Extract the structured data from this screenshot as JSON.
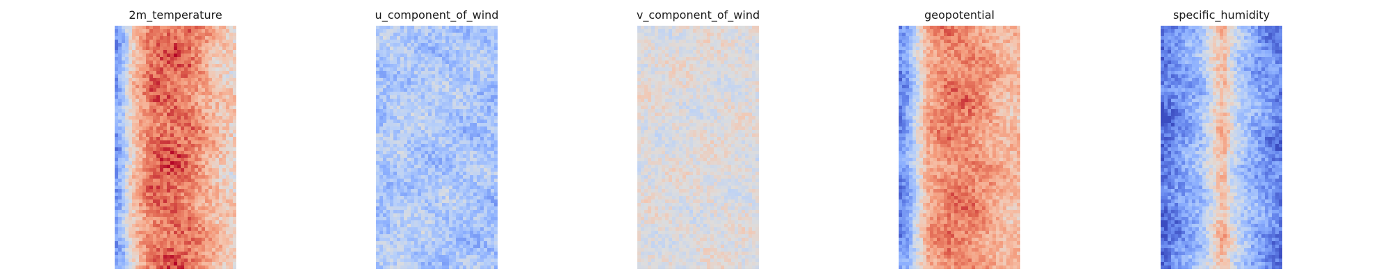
{
  "chart_data": [
    {
      "type": "heatmap",
      "title": "2m_temperature",
      "grid": false,
      "axes_visible": false,
      "colormap": "coolwarm",
      "rows": 70,
      "cols": 35,
      "description_profile": [
        {
          "at": 0.0,
          "level": 0.18
        },
        {
          "at": 0.06,
          "level": 0.3
        },
        {
          "at": 0.14,
          "level": 0.58
        },
        {
          "at": 0.22,
          "level": 0.72
        },
        {
          "at": 0.32,
          "level": 0.84
        },
        {
          "at": 0.48,
          "level": 0.86
        },
        {
          "at": 0.62,
          "level": 0.82
        },
        {
          "at": 0.74,
          "level": 0.72
        },
        {
          "at": 0.86,
          "level": 0.62
        },
        {
          "at": 1.0,
          "level": 0.56
        }
      ],
      "noise": 0.1,
      "seed": 11
    },
    {
      "type": "heatmap",
      "title": "u_component_of_wind",
      "grid": false,
      "axes_visible": false,
      "colormap": "coolwarm",
      "rows": 70,
      "cols": 35,
      "description_profile": [
        {
          "at": 0.0,
          "level": 0.33
        },
        {
          "at": 0.2,
          "level": 0.37
        },
        {
          "at": 0.5,
          "level": 0.35
        },
        {
          "at": 0.8,
          "level": 0.34
        },
        {
          "at": 1.0,
          "level": 0.32
        }
      ],
      "noise": 0.1,
      "seed": 23
    },
    {
      "type": "heatmap",
      "title": "v_component_of_wind",
      "grid": false,
      "axes_visible": false,
      "colormap": "coolwarm",
      "rows": 70,
      "cols": 35,
      "description_profile": [
        {
          "at": 0.0,
          "level": 0.5
        },
        {
          "at": 0.5,
          "level": 0.5
        },
        {
          "at": 1.0,
          "level": 0.5
        }
      ],
      "noise": 0.07,
      "seed": 37
    },
    {
      "type": "heatmap",
      "title": "geopotential",
      "grid": false,
      "axes_visible": false,
      "colormap": "coolwarm",
      "rows": 70,
      "cols": 35,
      "description_profile": [
        {
          "at": 0.0,
          "level": 0.14
        },
        {
          "at": 0.08,
          "level": 0.24
        },
        {
          "at": 0.16,
          "level": 0.48
        },
        {
          "at": 0.24,
          "level": 0.7
        },
        {
          "at": 0.4,
          "level": 0.8
        },
        {
          "at": 0.58,
          "level": 0.8
        },
        {
          "at": 0.72,
          "level": 0.74
        },
        {
          "at": 0.86,
          "level": 0.66
        },
        {
          "at": 1.0,
          "level": 0.64
        }
      ],
      "noise": 0.09,
      "seed": 53
    },
    {
      "type": "heatmap",
      "title": "specific_humidity",
      "grid": false,
      "axes_visible": false,
      "colormap": "coolwarm",
      "rows": 70,
      "cols": 35,
      "description_profile": [
        {
          "at": 0.0,
          "level": 0.08
        },
        {
          "at": 0.18,
          "level": 0.2
        },
        {
          "at": 0.34,
          "level": 0.32
        },
        {
          "at": 0.46,
          "level": 0.58
        },
        {
          "at": 0.52,
          "level": 0.66
        },
        {
          "at": 0.6,
          "level": 0.44
        },
        {
          "at": 0.76,
          "level": 0.26
        },
        {
          "at": 0.9,
          "level": 0.18
        },
        {
          "at": 1.0,
          "level": 0.12
        }
      ],
      "noise": 0.1,
      "seed": 71
    }
  ]
}
